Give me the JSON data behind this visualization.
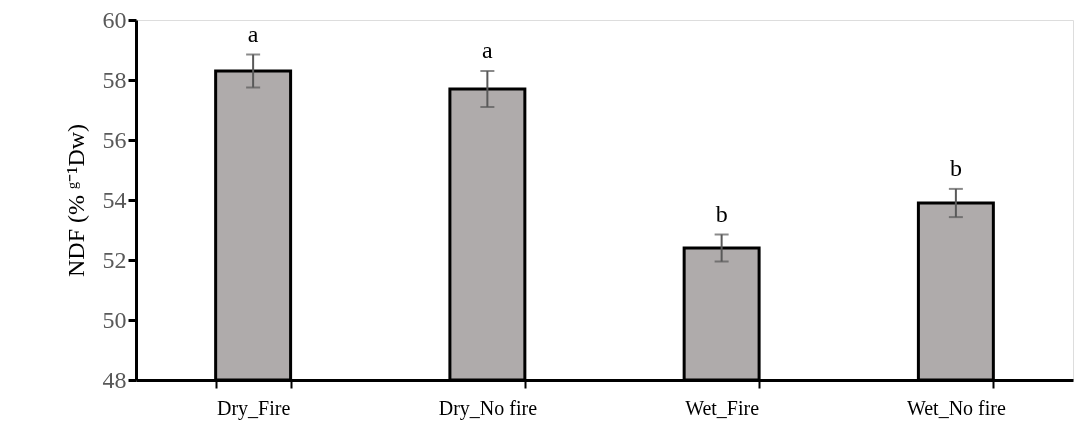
{
  "chart_data": {
    "type": "bar",
    "ylabel": "NDF (% ᵍ⁻¹Dw)",
    "categories": [
      "Dry_Fire",
      "Dry_No fire",
      "Wet_Fire",
      "Wet_No fire"
    ],
    "values": [
      58.3,
      57.7,
      52.4,
      53.9
    ],
    "color": "#afabab",
    "errors": [
      0.55,
      0.6,
      0.45,
      0.47
    ],
    "ylim": [
      48,
      60
    ],
    "yticks": [
      48,
      50,
      52,
      54,
      56,
      58,
      60
    ],
    "grid": false,
    "annotations": [
      "a",
      "a",
      "b",
      "b"
    ]
  }
}
